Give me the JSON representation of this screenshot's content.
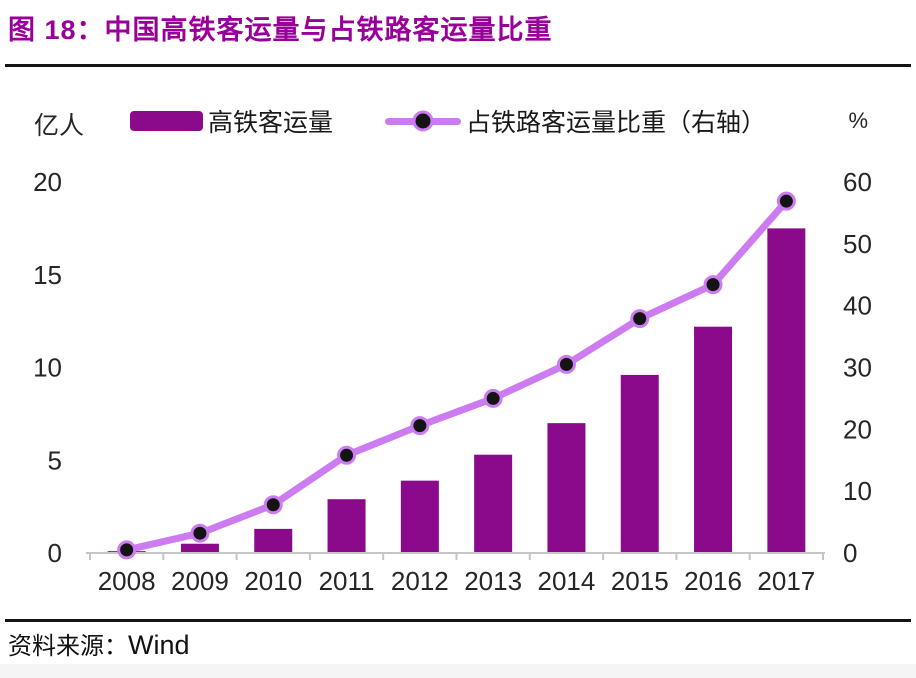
{
  "header": {
    "title": "图 18：中国高铁客运量与占铁路客运量比重"
  },
  "chart_data": {
    "type": "bar",
    "title": "中国高铁客运量与占铁路客运量比重",
    "categories": [
      "2008",
      "2009",
      "2010",
      "2011",
      "2012",
      "2013",
      "2014",
      "2015",
      "2016",
      "2017"
    ],
    "series": [
      {
        "name": "高铁客运量",
        "type": "bar",
        "axis": "left",
        "color": "#8B0A8B",
        "values": [
          0.1,
          0.5,
          1.3,
          2.9,
          3.9,
          5.3,
          7.0,
          9.6,
          12.2,
          17.5
        ]
      },
      {
        "name": "占铁路客运量比重（右轴）",
        "type": "line",
        "axis": "right",
        "color": "#CC7CF0",
        "marker_color": "#141414",
        "values": [
          0.5,
          3.2,
          7.8,
          15.8,
          20.6,
          25.0,
          30.5,
          37.9,
          43.4,
          56.9
        ]
      }
    ],
    "left_axis": {
      "unit": "亿人",
      "min": 0,
      "max": 20,
      "ticks": [
        0,
        5,
        10,
        15,
        20
      ]
    },
    "right_axis": {
      "unit": "%",
      "min": 0,
      "max": 60,
      "ticks": [
        0,
        10,
        20,
        30,
        40,
        50,
        60
      ]
    },
    "grid": false,
    "legend_position": "top"
  },
  "footer": {
    "source_label": "资料来源：",
    "source_value": "Wind"
  },
  "colors": {
    "title": "#990099",
    "rule": "#141414",
    "axis_text": "#262626",
    "axis_line": "#C6C6C6"
  }
}
